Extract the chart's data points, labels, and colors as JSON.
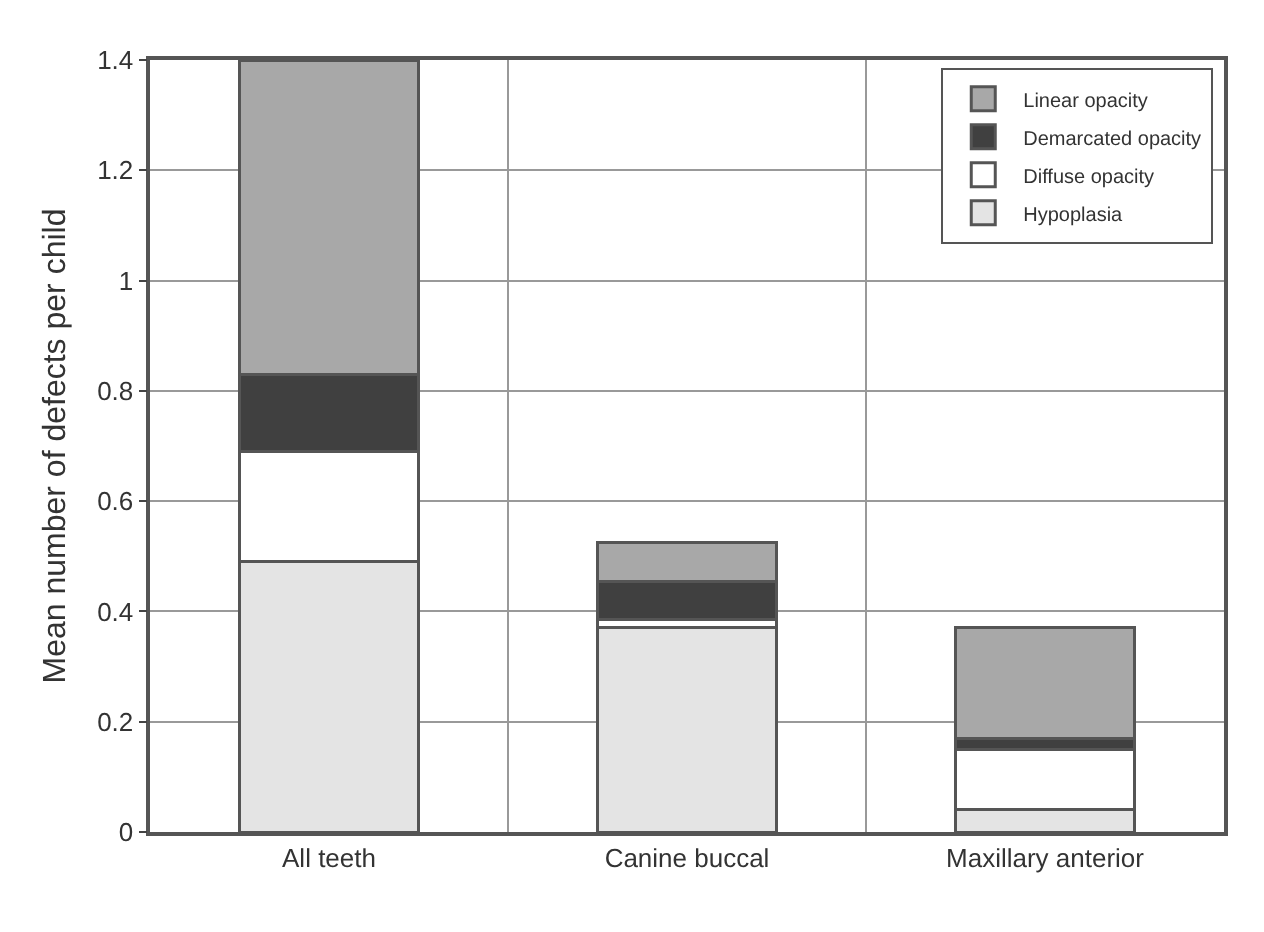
{
  "chart_data": {
    "type": "bar",
    "stacked": true,
    "ylabel": "Mean number of defects per child",
    "categories": [
      "All teeth",
      "Canine buccal",
      "Maxillary anterior"
    ],
    "series": [
      {
        "name": "Hypoplasia",
        "color": "#e4e4e4",
        "values": [
          0.49,
          0.37,
          0.04
        ]
      },
      {
        "name": "Diffuse opacity",
        "color": "#ffffff",
        "values": [
          0.2,
          0.015,
          0.11
        ]
      },
      {
        "name": "Demarcated opacity",
        "color": "#404040",
        "values": [
          0.14,
          0.07,
          0.02
        ]
      },
      {
        "name": "Linear opacity",
        "color": "#a8a8a8",
        "values": [
          0.57,
          0.07,
          0.2
        ]
      }
    ],
    "ylim": [
      0,
      1.4
    ],
    "yticks": [
      0,
      0.2,
      0.4,
      0.6,
      0.8,
      1,
      1.2,
      1.4
    ],
    "grid": true,
    "legend": "top right"
  }
}
